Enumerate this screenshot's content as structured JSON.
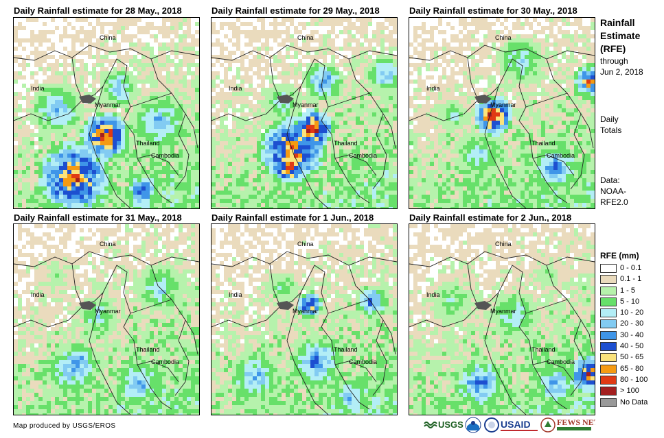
{
  "panels": [
    {
      "title": "Daily Rainfall estimate for 28 May., 2018"
    },
    {
      "title": "Daily Rainfall estimate for 29 May., 2018"
    },
    {
      "title": "Daily Rainfall estimate for 30 May., 2018"
    },
    {
      "title": "Daily Rainfall estimate for 31 May., 2018"
    },
    {
      "title": "Daily Rainfall estimate for 1 Jun., 2018"
    },
    {
      "title": "Daily Rainfall estimate for 2 Jun., 2018"
    }
  ],
  "labels": {
    "china": "China",
    "india": "India",
    "myanmar": "Myanmar",
    "thailand": "Thailand",
    "cambodia": "Cambodia"
  },
  "side": {
    "title_line1": "Rainfall",
    "title_line2": "Estimate",
    "title_line3": "(RFE)",
    "through": "through",
    "date": "Jun 2, 2018",
    "daily": "Daily",
    "totals": "Totals",
    "data_label": "Data:",
    "source1": "NOAA-",
    "source2": "RFE2.0"
  },
  "legend": {
    "title": "RFE (mm)",
    "items": [
      {
        "label": "0 - 0.1",
        "color": "#ffffff"
      },
      {
        "label": "0.1 - 1",
        "color": "#eadbbd"
      },
      {
        "label": "1 - 5",
        "color": "#b6f2ac"
      },
      {
        "label": "5 - 10",
        "color": "#67e06a"
      },
      {
        "label": "10 - 20",
        "color": "#b3eef6"
      },
      {
        "label": "20 - 30",
        "color": "#82cbf2"
      },
      {
        "label": "30 - 40",
        "color": "#3f95e8"
      },
      {
        "label": "40 - 50",
        "color": "#1d4fd0"
      },
      {
        "label": "50 - 65",
        "color": "#fbe37c"
      },
      {
        "label": "65 - 80",
        "color": "#f59a12"
      },
      {
        "label": "80 - 100",
        "color": "#e03a14"
      },
      {
        "label": "> 100",
        "color": "#a31f1f"
      },
      {
        "label": "No Data",
        "color": "#999999"
      }
    ]
  },
  "footer": "Map produced by USGS/EROS",
  "logos": {
    "usgs": "USGS",
    "usaid": "USAID",
    "fewsnet": "FEWS NET"
  }
}
